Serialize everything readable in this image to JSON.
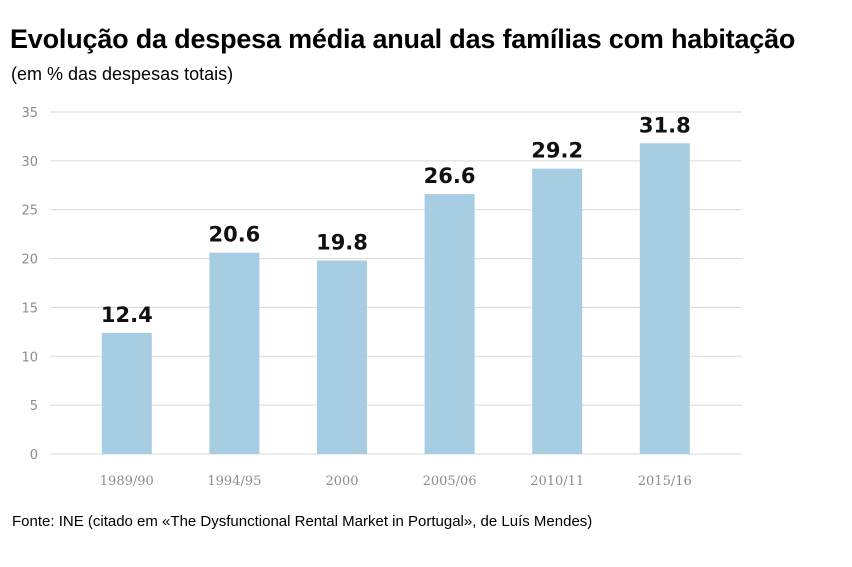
{
  "header": {
    "title": "Evolução da despesa média anual das famílias com habitação",
    "subtitle": "(em % das despesas totais)"
  },
  "footer": {
    "source": "Fonte: INE (citado em «The Dysfunctional Rental Market in Portugal», de Luís Mendes)"
  },
  "colors": {
    "bar": "#a7cde2",
    "grid": "#d9d9d9",
    "tick_text": "#8c8c8c"
  },
  "chart_data": {
    "type": "bar",
    "title": "Evolução da despesa média anual das famílias com habitação",
    "subtitle": "(em % das despesas totais)",
    "categories": [
      "1989/90",
      "1994/95",
      "2000",
      "2005/06",
      "2010/11",
      "2015/16"
    ],
    "values": [
      12.4,
      20.6,
      19.8,
      26.6,
      29.2,
      31.8
    ],
    "value_labels": [
      "12.4",
      "20.6",
      "19.8",
      "26.6",
      "29.2",
      "31.8"
    ],
    "ylim": [
      0,
      35
    ],
    "yticks": [
      0,
      5,
      10,
      15,
      20,
      25,
      30,
      35
    ],
    "grid": true,
    "legend": "none"
  }
}
